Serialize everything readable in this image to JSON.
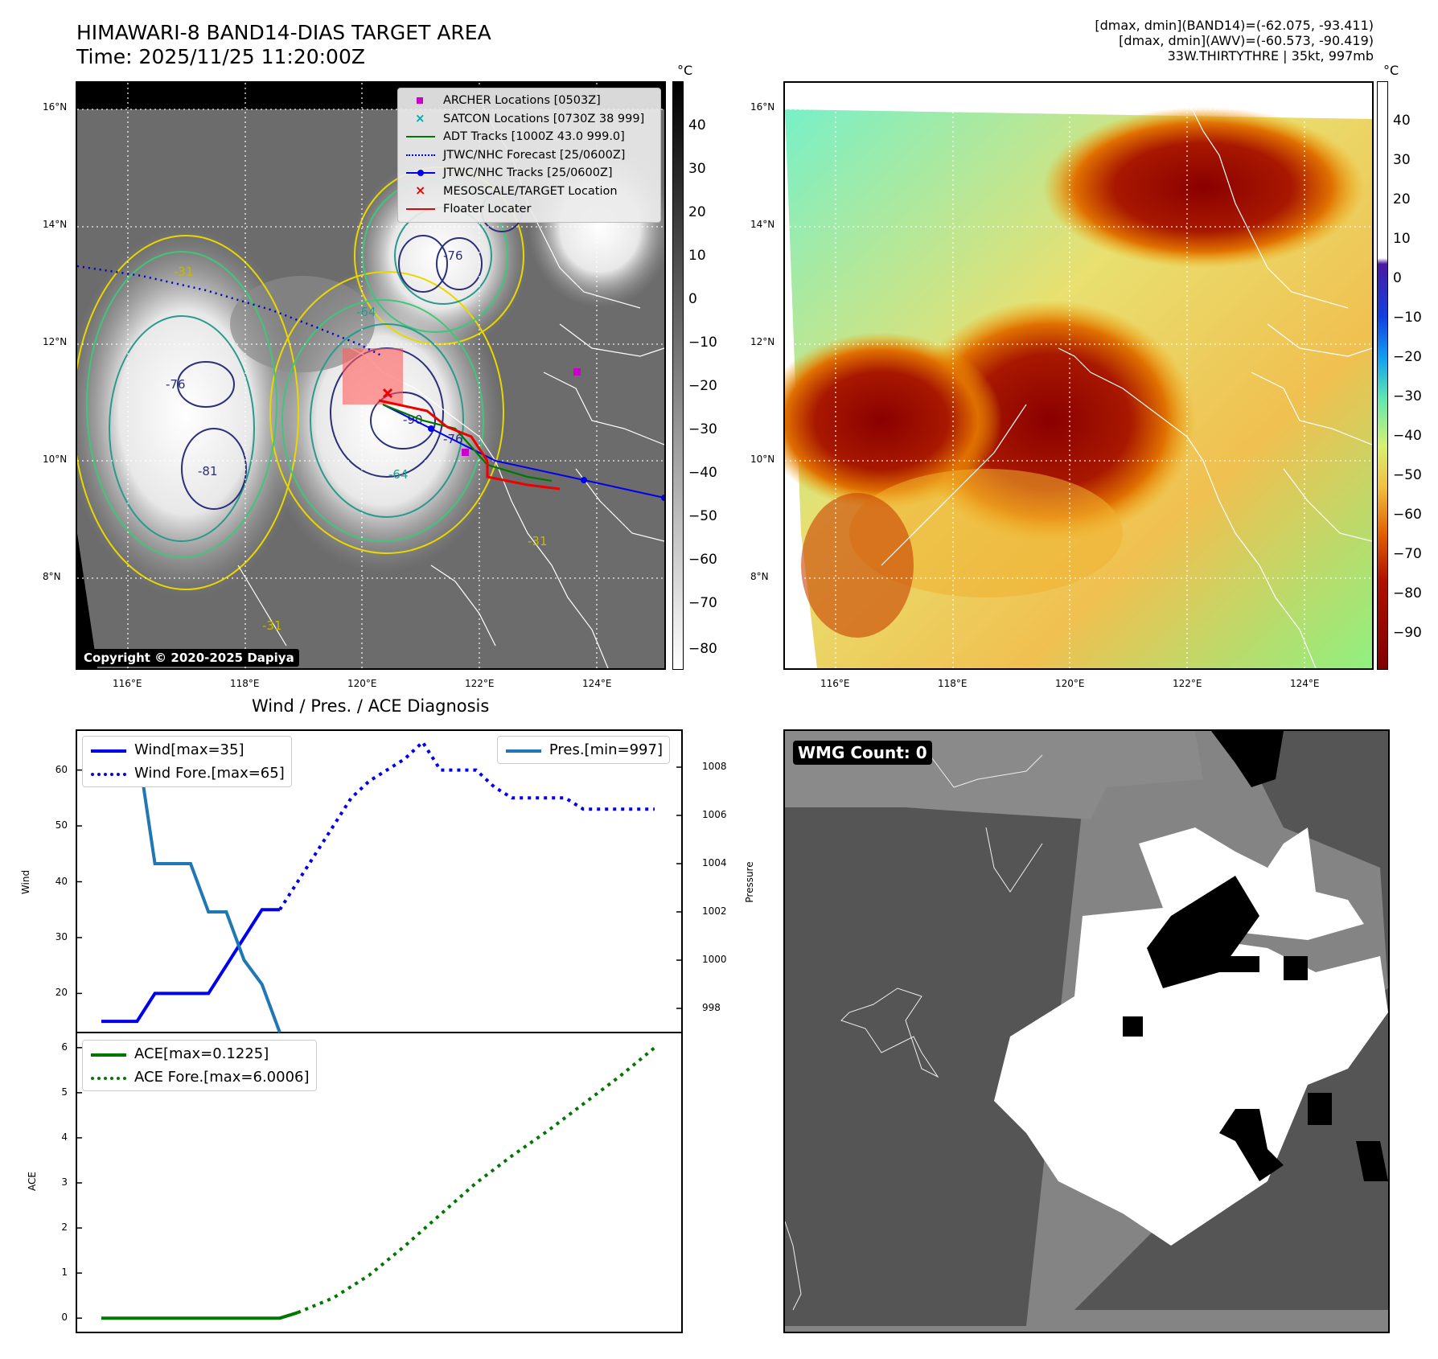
{
  "header": {
    "title_line1": "HIMAWARI-8 BAND14-DIAS TARGET AREA",
    "title_line2": "Time: 2025/11/25 11:20:00Z",
    "info_line1": "[dmax, dmin](BAND14)=(-62.075, -93.411)",
    "info_line2": "[dmax, dmin](AWV)=(-60.573, -90.419)",
    "info_line3": "33W.THIRTYTHRE | 35kt, 997mb"
  },
  "map_axes": {
    "lon_labels": [
      "116°E",
      "118°E",
      "120°E",
      "122°E",
      "124°E"
    ],
    "lat_labels": [
      "16°N",
      "14°N",
      "12°N",
      "10°N",
      "8°N"
    ]
  },
  "ir_panel": {
    "colorbar_unit": "°C",
    "colorbar_ticks": [
      "40",
      "30",
      "20",
      "10",
      "0",
      "−10",
      "−20",
      "−30",
      "−40",
      "−50",
      "−60",
      "−70",
      "−80"
    ],
    "legend": [
      {
        "label": "ARCHER Locations [0503Z]",
        "color": "#cc00cc",
        "marker": "square"
      },
      {
        "label": "SATCON Locations [0730Z 38 999]",
        "color": "#00aaaa",
        "marker": "x"
      },
      {
        "label": "ADT Tracks [1000Z 43.0 999.0]",
        "color": "#007700",
        "marker": "line"
      },
      {
        "label": "JTWC/NHC Forecast [25/0600Z]",
        "color": "#0000cc",
        "marker": "dotted"
      },
      {
        "label": "JTWC/NHC Tracks [25/0600Z]",
        "color": "#0000ee",
        "marker": "line-dot"
      },
      {
        "label": "MESOSCALE/TARGET Location",
        "color": "#ee0000",
        "marker": "x"
      },
      {
        "label": "Floater Locater",
        "color": "#ee0000",
        "marker": "line"
      }
    ],
    "contour_labels": [
      "-64",
      "-76",
      "-90",
      "-81",
      "-76",
      "-31",
      "-31",
      "-64",
      "-76",
      "-31"
    ],
    "copyright": "Copyright © 2020-2025 Dapiya"
  },
  "awv_panel": {
    "colorbar_unit": "°C",
    "colorbar_ticks": [
      "40",
      "30",
      "20",
      "10",
      "0",
      "−10",
      "−20",
      "−30",
      "−40",
      "−50",
      "−60",
      "−70",
      "−80",
      "−90"
    ]
  },
  "diagnosis": {
    "title": "Wind / Pres. / ACE Diagnosis",
    "wind_ylabel": "Wind",
    "pres_ylabel": "Pressure",
    "ace_ylabel": "ACE",
    "legend_wind": "Wind[max=35]",
    "legend_wind_fore": "Wind Fore.[max=65]",
    "legend_pres": "Pres.[min=997]",
    "legend_ace": "ACE[max=0.1225]",
    "legend_ace_fore": "ACE Fore.[max=6.0006]"
  },
  "wmg_panel": {
    "label": "WMG Count: 0"
  },
  "chart_data": [
    {
      "type": "line",
      "title": "Wind / Pres. / ACE Diagnosis",
      "ylabel": "Wind",
      "ylim": [
        13,
        67
      ],
      "yticks": [
        20,
        30,
        40,
        50,
        60
      ],
      "series": [
        {
          "name": "Wind[max=35]",
          "color": "#0000ee",
          "style": "solid",
          "x": [
            0,
            1,
            2,
            3,
            4,
            5,
            6,
            7,
            8,
            9,
            10
          ],
          "y": [
            15,
            15,
            15,
            20,
            20,
            20,
            20,
            25,
            30,
            35,
            35
          ]
        },
        {
          "name": "Wind Fore.[max=65]",
          "color": "#0000ee",
          "style": "dotted",
          "x": [
            10,
            11,
            12,
            13,
            14,
            15,
            16,
            17,
            18,
            19,
            20,
            21,
            22,
            23,
            24,
            25,
            26,
            27,
            28,
            29,
            30,
            31
          ],
          "y": [
            35,
            40,
            45,
            50,
            55,
            58,
            60,
            62,
            65,
            60,
            60,
            60,
            57,
            55,
            55,
            55,
            55,
            53,
            53,
            53,
            53,
            53
          ]
        }
      ]
    },
    {
      "type": "line",
      "ylabel": "Pressure",
      "ylim": [
        997,
        1009.5
      ],
      "yticks": [
        998,
        1000,
        1002,
        1004,
        1006,
        1008
      ],
      "series": [
        {
          "name": "Pres.[min=997]",
          "color": "#1f77b4",
          "style": "solid",
          "x": [
            1,
            2,
            3,
            4,
            5,
            6,
            7,
            8,
            9,
            10
          ],
          "y": [
            1009,
            1009,
            1004,
            1004,
            1004,
            1002,
            1002,
            1000,
            999,
            997
          ]
        }
      ]
    },
    {
      "type": "line",
      "ylabel": "ACE",
      "ylim": [
        -0.3,
        6.3
      ],
      "yticks": [
        0,
        1,
        2,
        3,
        4,
        5,
        6
      ],
      "series": [
        {
          "name": "ACE[max=0.1225]",
          "color": "#007700",
          "style": "solid",
          "x": [
            0,
            10,
            11
          ],
          "y": [
            0,
            0,
            0.1225
          ]
        },
        {
          "name": "ACE Fore.[max=6.0006]",
          "color": "#007700",
          "style": "dotted",
          "x": [
            11,
            13,
            15,
            17,
            19,
            21,
            23,
            25,
            27,
            29,
            31
          ],
          "y": [
            0.1225,
            0.45,
            0.95,
            1.6,
            2.3,
            3.0,
            3.6,
            4.15,
            4.75,
            5.35,
            6.0006
          ]
        }
      ]
    }
  ]
}
